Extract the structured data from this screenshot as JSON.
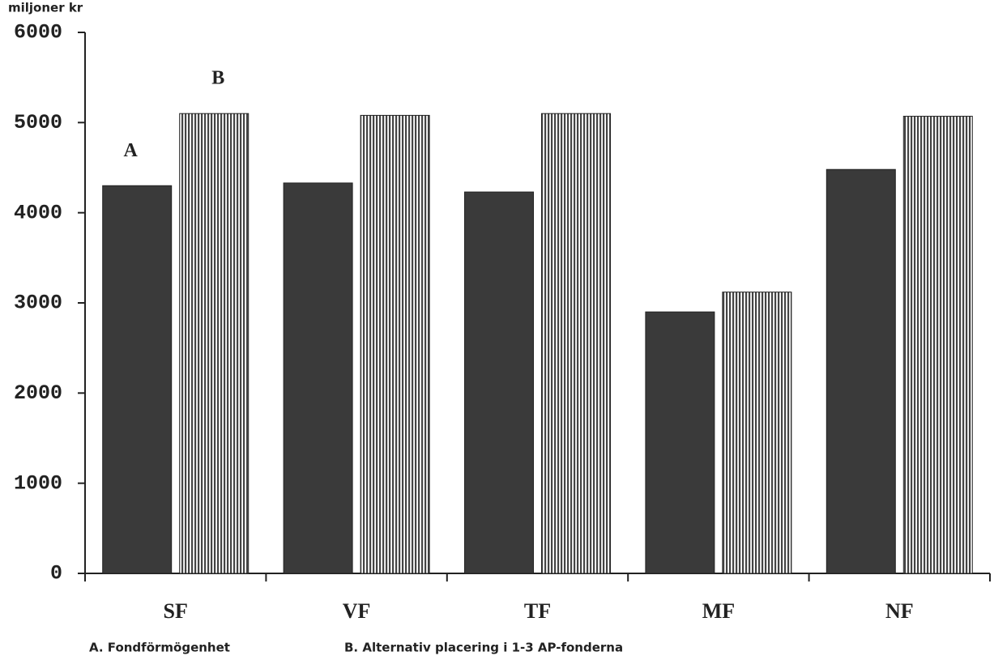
{
  "chart_data": {
    "type": "bar",
    "y_label": "miljoner kr",
    "categories": [
      "SF",
      "VF",
      "TF",
      "MF",
      "NF"
    ],
    "series": [
      {
        "name": "A. Fondförmögenhet",
        "marker": "A",
        "color": "#3a3a3a",
        "pattern": "solid",
        "values": [
          4300,
          4330,
          4230,
          2900,
          4480
        ]
      },
      {
        "name": "B. Alternativ placering i 1-3 AP-fonderna",
        "marker": "B",
        "color": "#444444",
        "pattern": "vertical-stripes",
        "values": [
          5100,
          5080,
          5100,
          3120,
          5070
        ]
      }
    ],
    "ylim": [
      0,
      6000
    ],
    "yticks": [
      0,
      1000,
      2000,
      3000,
      4000,
      5000,
      6000
    ],
    "grid": false
  }
}
